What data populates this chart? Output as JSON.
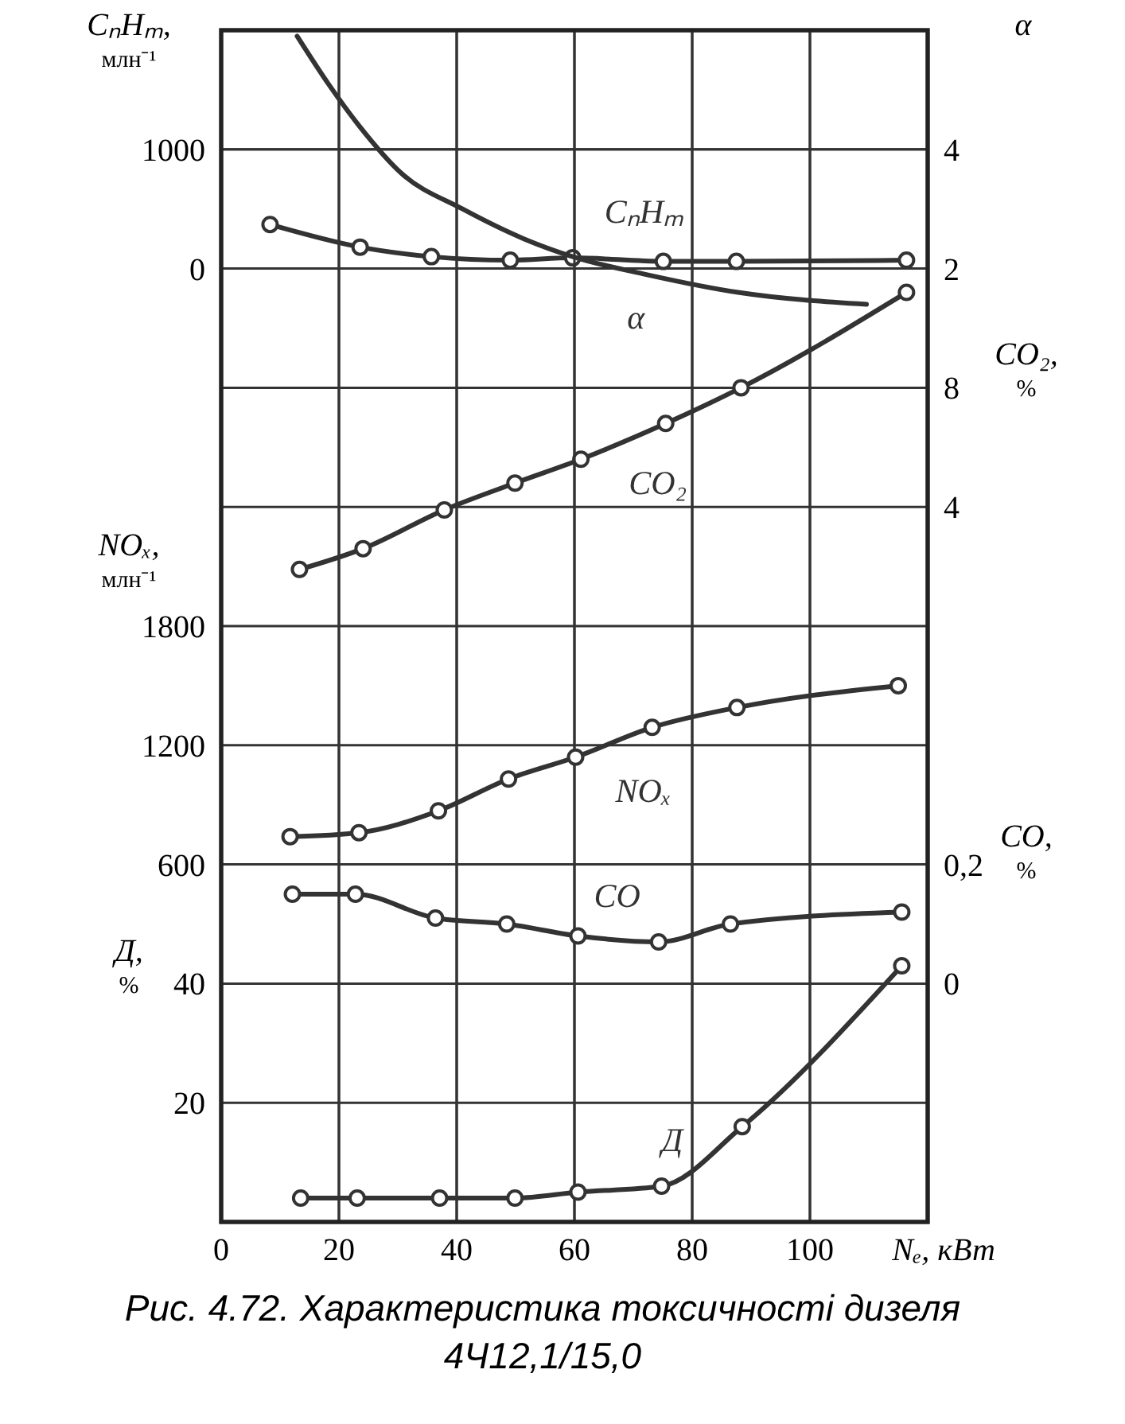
{
  "chart_data": [
    {
      "type": "line",
      "xlim": [
        0,
        120
      ],
      "xticks": [
        0,
        20,
        40,
        60,
        80,
        100
      ],
      "tick_labels": "y",
      "ylabel": "CₙHₘ, млн⁻¹",
      "ylim": [
        -8000,
        2000
      ],
      "yticks": [
        0,
        1000
      ],
      "y2label": "α",
      "y2lim": [
        -14,
        6
      ],
      "y2ticks": [
        2,
        4
      ],
      "y3label": "CO₂, %",
      "y3lim": [
        -20,
        20
      ],
      "y3ticks": [
        4,
        8
      ],
      "grid": true,
      "marker": "circle",
      "line_style": "solid",
      "series": [
        {
          "name": "CₙHₘ",
          "color": "#333333",
          "x": [
            8.3,
            23.6,
            35.7,
            49.1,
            59.7,
            75.1,
            87.5,
            116.4
          ],
          "values": [
            370,
            180,
            100,
            70,
            90,
            60,
            60,
            70
          ]
        },
        {
          "name": "α",
          "color": "#333333",
          "axis": "y2",
          "marker": "none",
          "x": [
            12.9,
            18.2,
            23.4,
            30.6,
            41.0,
            51.4,
            59.7,
            72.2,
            87.8,
            109.6
          ],
          "values": [
            5.9,
            5.1,
            4.4,
            3.6,
            3.0,
            2.5,
            2.2,
            1.9,
            1.6,
            1.4
          ]
        },
        {
          "name": "CO₂",
          "color": "#333333",
          "axis": "y3",
          "x": [
            13.3,
            24.1,
            37.9,
            49.9,
            61.1,
            75.5,
            88.3,
            116.4
          ],
          "values": [
            1.9,
            2.6,
            3.9,
            4.8,
            5.6,
            6.8,
            8.0,
            11.2
          ]
        }
      ]
    },
    {
      "type": "line",
      "xlabel": "Nₑ, кВт",
      "xlim": [
        0,
        120
      ],
      "xticks": [
        0,
        20,
        40,
        60,
        80,
        100
      ],
      "ylabel": "NOₓ, млн⁻¹",
      "ylim": [
        -1200,
        4800
      ],
      "yticks": [
        600,
        1200,
        1800
      ],
      "y2label": "CO, %",
      "y2lim": [
        -0.4,
        1.6
      ],
      "y2ticks": [
        0,
        {
          "value": 0.2,
          "label": "0,2"
        }
      ],
      "y3label": "Д, %",
      "y3lim": [
        0,
        200
      ],
      "y3ticks": [
        20,
        40
      ],
      "grid": true,
      "marker": "circle",
      "line_style": "solid",
      "annotations": [
        "Рис. 4.72. Характеристика токсичності дизеля 4Ч12,1/15,0"
      ],
      "series": [
        {
          "name": "NOₓ",
          "color": "#333333",
          "x": [
            11.7,
            23.4,
            36.9,
            48.8,
            60.2,
            73.2,
            87.6,
            115.0
          ],
          "values": [
            740,
            760,
            870,
            1030,
            1140,
            1290,
            1390,
            1500
          ]
        },
        {
          "name": "CO",
          "color": "#333333",
          "axis": "y2",
          "x": [
            12.1,
            22.8,
            36.4,
            48.5,
            60.6,
            74.3,
            86.5,
            115.6
          ],
          "values": [
            0.15,
            0.15,
            0.11,
            0.1,
            0.08,
            0.07,
            0.1,
            0.12
          ]
        },
        {
          "name": "Д",
          "color": "#333333",
          "axis": "y3",
          "x": [
            13.5,
            23.1,
            37.1,
            49.9,
            60.6,
            74.8,
            88.5,
            115.6
          ],
          "values": [
            4,
            4,
            4,
            4,
            5,
            6,
            16,
            43
          ]
        }
      ]
    }
  ]
}
